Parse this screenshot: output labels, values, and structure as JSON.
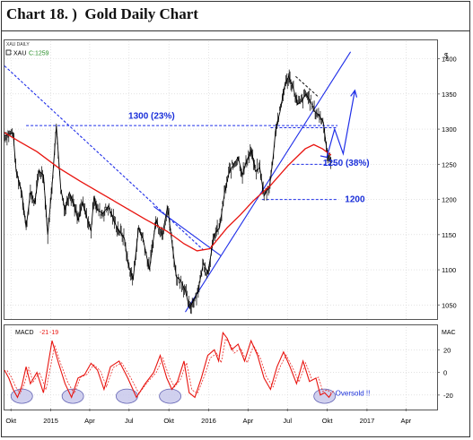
{
  "header": {
    "title": "Chart 18. )  Gold Daily Chart"
  },
  "colors": {
    "price": "#000000",
    "moving_average": "#e8140f",
    "trendline_blue": "#1f2ee8",
    "annotation_text": "#1a2fd9",
    "macd_line": "#e8140f",
    "oversold_fill": "#c8c8ec"
  },
  "chart_data": [
    {
      "type": "line",
      "title": "",
      "header_tag": "XAU DAILY",
      "legend": {
        "symbol": "XAU",
        "close_label": "C:1259"
      },
      "ylabel": "$",
      "ylim": [
        1030,
        1425
      ],
      "y_ticks": [
        "1400",
        "1350",
        "1300",
        "1250",
        "1200",
        "1150",
        "1100",
        "1050"
      ],
      "y_tick_values": [
        1400,
        1350,
        1300,
        1250,
        1200,
        1150,
        1100,
        1050
      ],
      "x_ticks": [
        "Okt",
        "2015",
        "Apr",
        "Jul",
        "Okt",
        "2016",
        "Apr",
        "Jul",
        "Okt",
        "2017",
        "Apr"
      ],
      "x_tick_days": [
        0,
        92,
        182,
        273,
        365,
        457,
        548,
        639,
        731,
        823,
        913
      ],
      "xlim_days": [
        -15,
        985
      ],
      "grid": true,
      "series": [
        {
          "kind": "price",
          "x_days": [
            -15,
            5,
            12,
            25,
            35,
            45,
            55,
            65,
            75,
            85,
            95,
            105,
            115,
            125,
            135,
            145,
            155,
            165,
            175,
            185,
            192,
            200,
            212,
            225,
            245,
            262,
            270,
            282,
            295,
            305,
            320,
            335,
            350,
            362,
            372,
            382,
            392,
            403,
            413,
            425,
            432,
            445,
            455,
            470,
            482,
            494,
            505,
            515,
            525,
            535,
            545,
            555,
            565,
            575,
            585,
            598,
            606,
            612,
            622,
            632,
            642,
            652,
            662,
            672,
            682,
            692,
            702,
            712,
            722,
            730,
            735,
            740
          ],
          "values": [
            1290,
            1295,
            1240,
            1210,
            1160,
            1210,
            1195,
            1240,
            1235,
            1150,
            1220,
            1305,
            1215,
            1185,
            1210,
            1195,
            1170,
            1195,
            1175,
            1155,
            1205,
            1185,
            1180,
            1190,
            1160,
            1145,
            1110,
            1085,
            1160,
            1145,
            1100,
            1170,
            1150,
            1190,
            1140,
            1090,
            1085,
            1070,
            1045,
            1060,
            1070,
            1110,
            1095,
            1150,
            1160,
            1210,
            1240,
            1250,
            1260,
            1235,
            1255,
            1270,
            1240,
            1245,
            1205,
            1220,
            1260,
            1300,
            1325,
            1360,
            1375,
            1360,
            1335,
            1340,
            1350,
            1340,
            1325,
            1320,
            1310,
            1270,
            1255,
            1259
          ]
        },
        {
          "kind": "moving_average",
          "x_days": [
            -15,
            20,
            60,
            110,
            160,
            210,
            260,
            310,
            360,
            400,
            430,
            460,
            480,
            500,
            530,
            560,
            600,
            640,
            680,
            700,
            720,
            740
          ],
          "values": [
            1295,
            1282,
            1268,
            1245,
            1226,
            1208,
            1190,
            1172,
            1155,
            1137,
            1127,
            1130,
            1145,
            1160,
            1178,
            1198,
            1220,
            1248,
            1272,
            1278,
            1272,
            1263
          ]
        }
      ],
      "annotations": [
        {
          "label": "1300 (23%)",
          "x_days": 325,
          "value": 1315
        },
        {
          "label": "1250 (38%)",
          "x_days": 775,
          "value": 1248
        },
        {
          "label": "1200",
          "x_days": 795,
          "value": 1196
        }
      ],
      "level_lines": [
        {
          "value": 1305,
          "from_days": 35,
          "to_days": 755
        },
        {
          "value": 1302,
          "from_days": 600,
          "to_days": 755
        },
        {
          "value": 1250,
          "from_days": 650,
          "to_days": 755
        },
        {
          "value": 1200,
          "from_days": 580,
          "to_days": 755
        }
      ],
      "trend_lines": [
        {
          "style": "dashed",
          "from": [
            -15,
            1390
          ],
          "to": [
            445,
            1128
          ]
        },
        {
          "style": "solid",
          "from": [
            403,
            1040
          ],
          "to": [
            785,
            1410
          ]
        },
        {
          "style": "solid",
          "from": [
            330,
            1190
          ],
          "to": [
            485,
            1120
          ]
        },
        {
          "style": "dashed",
          "from": [
            658,
            1375
          ],
          "to": [
            712,
            1345
          ]
        }
      ],
      "forecast_path": {
        "x_days": [
          715,
          730,
          748,
          768,
          795
        ],
        "values": [
          1262,
          1260,
          1300,
          1265,
          1355
        ]
      }
    },
    {
      "type": "line",
      "title": "",
      "legend": {
        "label": "MACD",
        "values": [
          "-21",
          "-19"
        ]
      },
      "ylabel": "MAC",
      "ylim": [
        -32,
        40
      ],
      "y_ticks": [
        "20",
        "0",
        "-20"
      ],
      "y_tick_values": [
        20,
        0,
        -20
      ],
      "x_ticks": [
        "Okt",
        "2015",
        "Apr",
        "Jul",
        "Okt",
        "2016",
        "Apr",
        "Jul",
        "Okt",
        "2017",
        "Apr"
      ],
      "x_tick_days": [
        0,
        92,
        182,
        273,
        365,
        457,
        548,
        639,
        731,
        823,
        913
      ],
      "xlim_days": [
        -15,
        985
      ],
      "grid": true,
      "series": [
        {
          "kind": "macd",
          "x_days": [
            -15,
            -5,
            5,
            15,
            25,
            35,
            45,
            60,
            75,
            85,
            95,
            110,
            125,
            140,
            155,
            170,
            185,
            200,
            215,
            230,
            250,
            270,
            290,
            310,
            330,
            345,
            360,
            372,
            385,
            400,
            412,
            425,
            440,
            455,
            470,
            480,
            490,
            500,
            510,
            525,
            540,
            555,
            570,
            585,
            600,
            615,
            630,
            645,
            660,
            675,
            690,
            705,
            715,
            725,
            735,
            740
          ],
          "values": [
            2,
            -5,
            -15,
            -22,
            -12,
            5,
            -10,
            0,
            -18,
            5,
            28,
            8,
            -10,
            -22,
            -5,
            -2,
            8,
            2,
            -15,
            5,
            10,
            -5,
            -22,
            -10,
            0,
            15,
            -5,
            -15,
            -8,
            10,
            -18,
            -22,
            -5,
            15,
            20,
            10,
            35,
            30,
            20,
            25,
            10,
            28,
            15,
            -5,
            -15,
            5,
            18,
            5,
            -10,
            10,
            -8,
            -5,
            -20,
            -18,
            -22,
            -19
          ]
        }
      ],
      "oversold_zones_days": [
        25,
        143,
        268,
        368,
        725
      ],
      "annotations": [
        {
          "label": "Oversold !!",
          "x_days": 790,
          "value": -18
        }
      ]
    }
  ]
}
